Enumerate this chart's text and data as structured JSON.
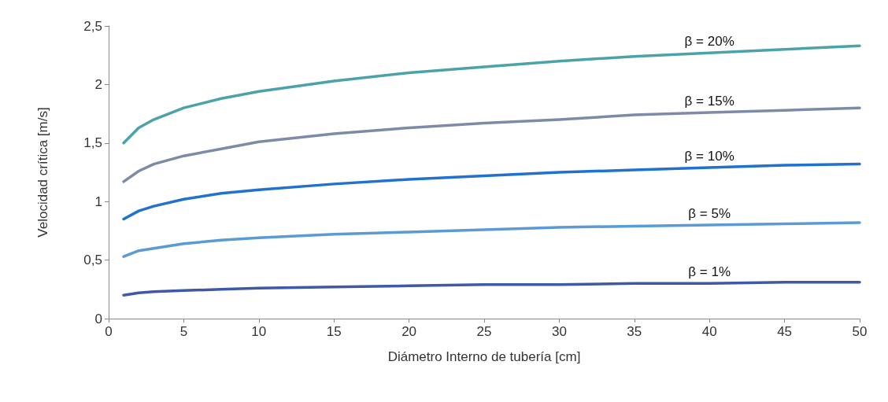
{
  "chart_data": {
    "type": "line",
    "xlabel": "Diámetro Interno de tubería [cm]",
    "ylabel": "Velocidad crítica [m/s]",
    "x": [
      1,
      2,
      3,
      5,
      7.5,
      10,
      15,
      20,
      25,
      30,
      35,
      40,
      45,
      50
    ],
    "series": [
      {
        "name": "β = 20%",
        "color": "#4ba3a9",
        "values": [
          1.5,
          1.63,
          1.7,
          1.8,
          1.88,
          1.94,
          2.03,
          2.1,
          2.15,
          2.2,
          2.24,
          2.27,
          2.3,
          2.33
        ]
      },
      {
        "name": "β = 15%",
        "color": "#7d8ca6",
        "values": [
          1.17,
          1.26,
          1.32,
          1.39,
          1.45,
          1.51,
          1.58,
          1.63,
          1.67,
          1.7,
          1.74,
          1.76,
          1.78,
          1.8
        ]
      },
      {
        "name": "β = 10%",
        "color": "#2071d0",
        "values": [
          0.85,
          0.92,
          0.96,
          1.02,
          1.07,
          1.1,
          1.15,
          1.19,
          1.22,
          1.25,
          1.27,
          1.29,
          1.31,
          1.32
        ]
      },
      {
        "name": "β = 5%",
        "color": "#5b9bd5",
        "values": [
          0.53,
          0.58,
          0.6,
          0.64,
          0.67,
          0.69,
          0.72,
          0.74,
          0.76,
          0.78,
          0.79,
          0.8,
          0.81,
          0.82
        ]
      },
      {
        "name": "β = 1%",
        "color": "#4058a8",
        "values": [
          0.2,
          0.22,
          0.23,
          0.24,
          0.25,
          0.26,
          0.27,
          0.28,
          0.29,
          0.29,
          0.3,
          0.3,
          0.31,
          0.31
        ]
      }
    ],
    "xlim": [
      0,
      50
    ],
    "xticks": [
      0,
      5,
      10,
      15,
      20,
      25,
      30,
      35,
      40,
      45,
      50
    ],
    "ylim": [
      0,
      2.5
    ],
    "yticks": [
      0,
      {
        "value": 0.5,
        "label": "0,5"
      },
      1,
      {
        "value": 1.5,
        "label": "1,5"
      },
      2,
      {
        "value": 2.5,
        "label": "2,5"
      }
    ],
    "grid": false,
    "legend": false,
    "marker": "none",
    "line_style": "solid"
  }
}
